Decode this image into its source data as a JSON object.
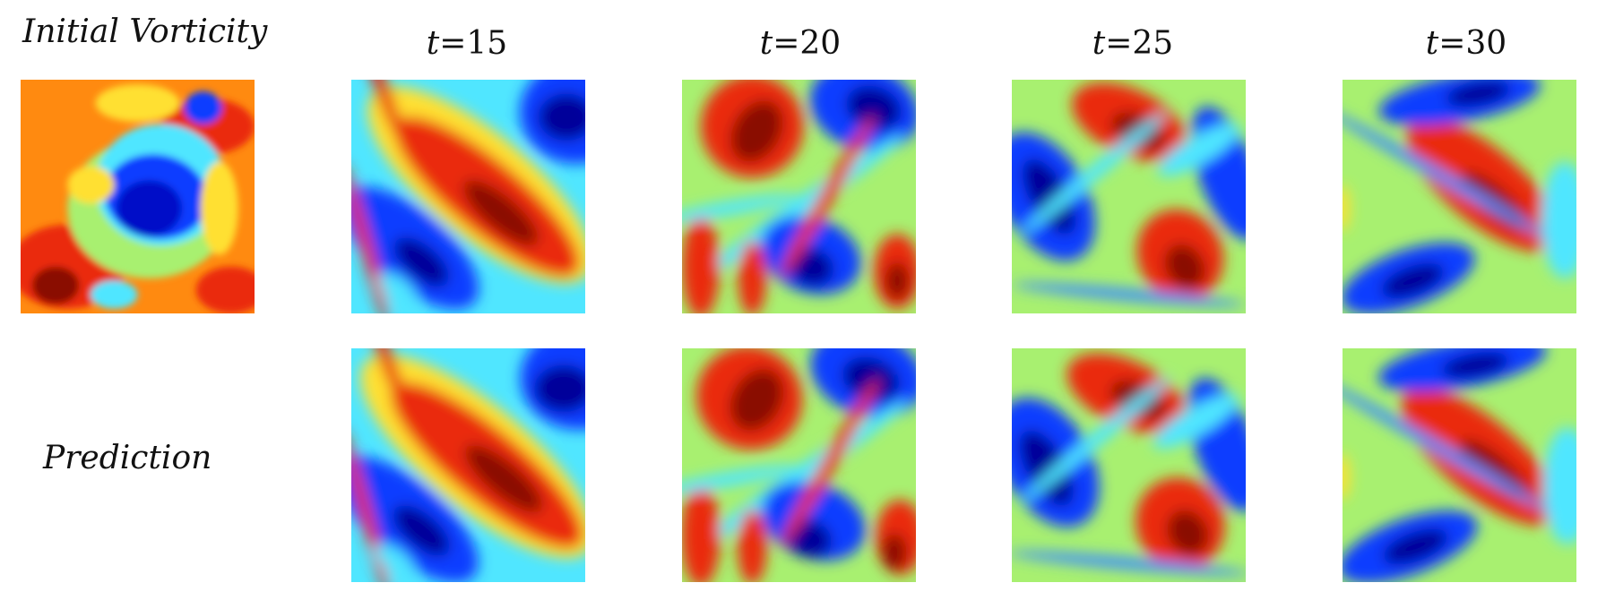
{
  "header": {
    "initial": "Initial Vorticity",
    "prediction": "Prediction"
  },
  "columns": [
    {
      "var": "t",
      "rest": "=15"
    },
    {
      "var": "t",
      "rest": "=20"
    },
    {
      "var": "t",
      "rest": "=25"
    },
    {
      "var": "t",
      "rest": "=30"
    }
  ]
}
